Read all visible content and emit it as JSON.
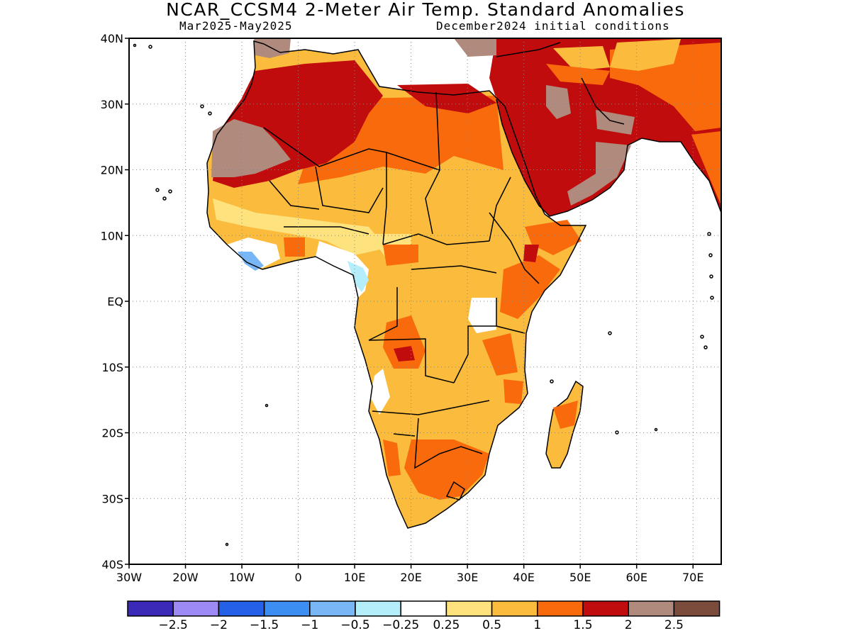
{
  "header": {
    "title": "NCAR_CCSM4 2-Meter Air Temp. Standard Anomalies",
    "period": "Mar2025-May2025",
    "init": "December2024 initial conditions"
  },
  "map": {
    "region_lon": [
      -30,
      75
    ],
    "region_lat": [
      -40,
      40
    ],
    "lat_labels": [
      {
        "lat": 40,
        "text": "40N"
      },
      {
        "lat": 30,
        "text": "30N"
      },
      {
        "lat": 20,
        "text": "20N"
      },
      {
        "lat": 10,
        "text": "10N"
      },
      {
        "lat": 0,
        "text": "EQ"
      },
      {
        "lat": -10,
        "text": "10S"
      },
      {
        "lat": -20,
        "text": "20S"
      },
      {
        "lat": -30,
        "text": "30S"
      },
      {
        "lat": -40,
        "text": "40S"
      }
    ],
    "lon_labels": [
      {
        "lon": -30,
        "text": "30W"
      },
      {
        "lon": -20,
        "text": "20W"
      },
      {
        "lon": -10,
        "text": "10W"
      },
      {
        "lon": 0,
        "text": "0"
      },
      {
        "lon": 10,
        "text": "10E"
      },
      {
        "lon": 20,
        "text": "20E"
      },
      {
        "lon": 30,
        "text": "30E"
      },
      {
        "lon": 40,
        "text": "40E"
      },
      {
        "lon": 50,
        "text": "50E"
      },
      {
        "lon": 60,
        "text": "60E"
      },
      {
        "lon": 70,
        "text": "70E"
      }
    ],
    "gridlines": "dotted",
    "ocean_color": "#ffffff"
  },
  "legend": {
    "colors": [
      "#3b29b8",
      "#9d8af4",
      "#2461e8",
      "#3d8ef2",
      "#78b6f6",
      "#b3eefa",
      "#ffffff",
      "#fde27e",
      "#fbbc3d",
      "#f96a0c",
      "#c10c0d",
      "#b08a7c",
      "#7b4c3c"
    ],
    "labels": [
      "-2.5",
      "-2",
      "-1.5",
      "-1",
      "-0.5",
      "-0.25",
      "0.25",
      "0.5",
      "1",
      "1.5",
      "2",
      "2.5"
    ]
  }
}
